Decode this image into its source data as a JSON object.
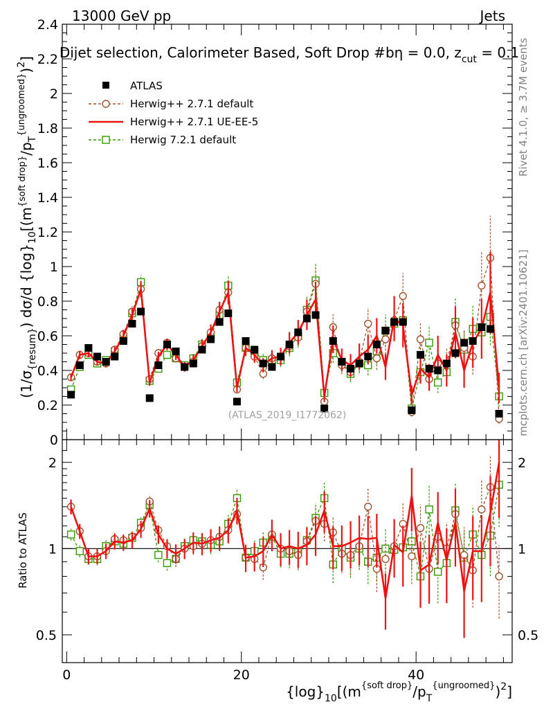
{
  "header": {
    "left": "13000 GeV pp",
    "right": "Jets",
    "title_parts": [
      "Dijet selection, Calorimeter Based, Soft Drop #b",
      "η = 0.0, z",
      "cut",
      " = 0.1"
    ]
  },
  "side_labels": {
    "rivet": "Rivet 4.1.0, ≥ 3.7M events",
    "mcplots": "mcplots.cern.ch [arXiv:2401.10621]"
  },
  "watermark": "(ATLAS_2019_I1772062)",
  "colors": {
    "data": "#000000",
    "herwigpp_default": "#a0522d",
    "herwigpp_ueee5": "#ee1111",
    "herwig7": "#339900"
  },
  "chart_data": [
    {
      "type": "line",
      "panel": "main",
      "ylabel_parts": [
        "(1/σ",
        "{resum}",
        ") dσ/d {log}",
        "10",
        "[(m",
        "{soft drop}",
        "/p",
        "T",
        "{ungroomed}",
        ")",
        "2",
        "]"
      ],
      "ylim": [
        0,
        2.4
      ],
      "yticks": [
        0,
        0.2,
        0.4,
        0.6,
        0.8,
        1,
        1.2,
        1.4,
        1.6,
        1.8,
        2,
        2.2,
        2.4
      ],
      "ytick_labels": [
        "0",
        "0.2",
        "0.4",
        "0.6",
        "0.8",
        "1",
        "1.2",
        "1.4",
        "1.6",
        "1.8",
        "2",
        "2.2",
        "2.4"
      ],
      "xlim": [
        -0.5,
        51
      ],
      "legend": [
        "ATLAS",
        "Herwig++ 2.7.1 default",
        "Herwig++ 2.7.1 UE-EE-5",
        "Herwig 7.2.1 default"
      ],
      "x": [
        0.5,
        1.5,
        2.5,
        3.5,
        4.5,
        5.5,
        6.5,
        7.5,
        8.5,
        9.5,
        10.5,
        11.5,
        12.5,
        13.5,
        14.5,
        15.5,
        16.5,
        17.5,
        18.5,
        19.5,
        20.5,
        21.5,
        22.5,
        23.5,
        24.5,
        25.5,
        26.5,
        27.5,
        28.5,
        29.5,
        30.5,
        31.5,
        32.5,
        33.5,
        34.5,
        35.5,
        36.5,
        37.5,
        38.5,
        39.5,
        40.5,
        41.5,
        42.5,
        43.5,
        44.5,
        45.5,
        46.5,
        47.5,
        48.5,
        49.5
      ],
      "series": [
        {
          "name": "ATLAS",
          "values": [
            0.26,
            0.43,
            0.53,
            0.48,
            0.45,
            0.48,
            0.57,
            0.67,
            0.74,
            0.24,
            0.43,
            0.55,
            0.51,
            0.42,
            0.44,
            0.52,
            0.58,
            0.68,
            0.73,
            0.22,
            0.57,
            0.52,
            0.44,
            0.42,
            0.48,
            0.55,
            0.62,
            0.7,
            0.72,
            0.18,
            0.57,
            0.45,
            0.41,
            0.44,
            0.48,
            0.55,
            0.63,
            0.68,
            0.68,
            0.17,
            0.49,
            0.41,
            0.4,
            0.44,
            0.5,
            0.56,
            0.57,
            0.65,
            0.64,
            0.15
          ]
        },
        {
          "name": "Herwig++ 2.7.1 default",
          "values": [
            0.36,
            0.49,
            0.5,
            0.45,
            0.44,
            0.52,
            0.61,
            0.74,
            0.87,
            0.35,
            0.5,
            0.56,
            0.47,
            0.42,
            0.45,
            0.54,
            0.62,
            0.75,
            0.85,
            0.29,
            0.53,
            0.48,
            0.38,
            0.47,
            0.48,
            0.54,
            0.59,
            0.74,
            0.9,
            0.22,
            0.65,
            0.43,
            0.39,
            0.45,
            0.67,
            0.47,
            0.58,
            0.69,
            0.83,
            0.16,
            0.58,
            0.35,
            0.44,
            0.44,
            0.66,
            0.53,
            0.48,
            0.89,
            1.05,
            0.12
          ]
        },
        {
          "name": "Herwig++ 2.7.1 UE-EE-5",
          "values": [
            0.36,
            0.49,
            0.5,
            0.45,
            0.44,
            0.51,
            0.6,
            0.72,
            0.87,
            0.33,
            0.48,
            0.55,
            0.49,
            0.42,
            0.46,
            0.54,
            0.62,
            0.74,
            0.85,
            0.3,
            0.53,
            0.49,
            0.43,
            0.47,
            0.48,
            0.56,
            0.62,
            0.72,
            0.81,
            0.25,
            0.58,
            0.46,
            0.43,
            0.48,
            0.52,
            0.6,
            0.42,
            0.7,
            0.66,
            0.26,
            0.41,
            0.36,
            0.49,
            0.4,
            0.62,
            0.4,
            0.56,
            0.64,
            0.85,
            0.3
          ]
        },
        {
          "name": "Herwig 7.2.1 default",
          "values": [
            0.29,
            0.42,
            0.49,
            0.44,
            0.46,
            0.51,
            0.59,
            0.73,
            0.91,
            0.34,
            0.41,
            0.49,
            0.47,
            0.43,
            0.47,
            0.55,
            0.6,
            0.72,
            0.89,
            0.33,
            0.53,
            0.51,
            0.46,
            0.46,
            0.46,
            0.53,
            0.6,
            0.75,
            0.92,
            0.27,
            0.5,
            0.45,
            0.38,
            0.44,
            0.43,
            0.51,
            0.63,
            0.67,
            0.69,
            0.18,
            0.39,
            0.56,
            0.33,
            0.39,
            0.68,
            0.52,
            0.64,
            0.62,
            0.71,
            0.25
          ]
        }
      ]
    },
    {
      "type": "line",
      "panel": "ratio",
      "ylabel": "Ratio to ATLAS",
      "xlabel_parts": [
        "{log}",
        "10",
        "[(m",
        "{soft drop}",
        "/p",
        "T",
        "{ungroomed}",
        ")",
        "2",
        "]"
      ],
      "ylim": [
        0.4,
        2.4
      ],
      "yscale": "log",
      "yticks": [
        0.5,
        1,
        2
      ],
      "ytick_labels": [
        "0.5",
        "1",
        "2"
      ],
      "xticks": [
        0,
        20,
        40
      ],
      "xtick_labels": [
        "0",
        "20",
        "40"
      ],
      "xlim": [
        -0.5,
        51
      ],
      "reference_line": 1,
      "x": [
        0.5,
        1.5,
        2.5,
        3.5,
        4.5,
        5.5,
        6.5,
        7.5,
        8.5,
        9.5,
        10.5,
        11.5,
        12.5,
        13.5,
        14.5,
        15.5,
        16.5,
        17.5,
        18.5,
        19.5,
        20.5,
        21.5,
        22.5,
        23.5,
        24.5,
        25.5,
        26.5,
        27.5,
        28.5,
        29.5,
        30.5,
        31.5,
        32.5,
        33.5,
        34.5,
        35.5,
        36.5,
        37.5,
        38.5,
        39.5,
        40.5,
        41.5,
        42.5,
        43.5,
        44.5,
        45.5,
        46.5,
        47.5,
        48.5,
        49.5
      ],
      "series": [
        {
          "name": "Herwig++ 2.7.1 default",
          "values": [
            1.4,
            1.15,
            0.94,
            0.94,
            0.98,
            1.08,
            1.07,
            1.1,
            1.18,
            1.46,
            1.16,
            1.02,
            0.92,
            1.0,
            1.02,
            1.04,
            1.07,
            1.1,
            1.16,
            1.32,
            0.93,
            0.92,
            0.86,
            1.12,
            1.0,
            0.98,
            0.95,
            1.06,
            1.25,
            1.22,
            1.14,
            0.96,
            0.95,
            1.02,
            1.4,
            0.85,
            0.92,
            1.02,
            1.22,
            0.94,
            1.18,
            0.85,
            1.1,
            1.0,
            1.32,
            0.95,
            0.84,
            1.37,
            1.64,
            0.8
          ]
        },
        {
          "name": "Herwig++ 2.7.1 UE-EE-5",
          "values": [
            1.4,
            1.15,
            0.94,
            0.94,
            0.98,
            1.06,
            1.05,
            1.07,
            1.17,
            1.38,
            1.12,
            1.0,
            0.96,
            1.0,
            1.05,
            1.04,
            1.07,
            1.09,
            1.16,
            1.36,
            0.93,
            0.94,
            0.98,
            1.12,
            1.0,
            1.02,
            1.0,
            1.03,
            1.12,
            1.36,
            1.02,
            1.02,
            1.05,
            1.09,
            1.08,
            1.09,
            0.67,
            1.03,
            0.97,
            1.53,
            0.84,
            0.88,
            1.23,
            0.91,
            1.24,
            0.71,
            0.98,
            0.98,
            1.33,
            2.0
          ]
        },
        {
          "name": "Herwig 7.2.1 default",
          "values": [
            1.12,
            0.98,
            0.92,
            0.92,
            1.02,
            1.06,
            1.04,
            1.09,
            1.23,
            1.42,
            0.95,
            0.89,
            0.92,
            1.02,
            1.07,
            1.06,
            1.03,
            1.06,
            1.22,
            1.5,
            0.93,
            0.98,
            1.05,
            1.1,
            0.96,
            0.96,
            0.97,
            1.07,
            1.28,
            1.5,
            0.88,
            1.0,
            0.93,
            1.0,
            0.9,
            0.93,
            1.0,
            0.99,
            1.01,
            1.06,
            0.8,
            1.37,
            0.83,
            0.89,
            1.36,
            0.93,
            1.12,
            0.95,
            1.11,
            1.67
          ]
        }
      ]
    }
  ]
}
